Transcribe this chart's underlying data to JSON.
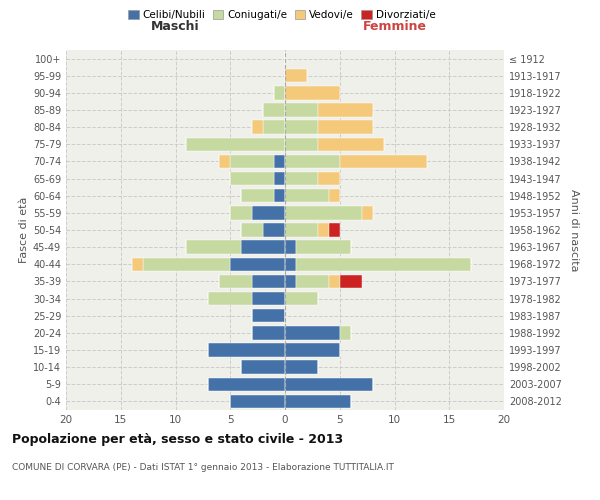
{
  "age_groups": [
    "0-4",
    "5-9",
    "10-14",
    "15-19",
    "20-24",
    "25-29",
    "30-34",
    "35-39",
    "40-44",
    "45-49",
    "50-54",
    "55-59",
    "60-64",
    "65-69",
    "70-74",
    "75-79",
    "80-84",
    "85-89",
    "90-94",
    "95-99",
    "100+"
  ],
  "birth_years": [
    "2008-2012",
    "2003-2007",
    "1998-2002",
    "1993-1997",
    "1988-1992",
    "1983-1987",
    "1978-1982",
    "1973-1977",
    "1968-1972",
    "1963-1967",
    "1958-1962",
    "1953-1957",
    "1948-1952",
    "1943-1947",
    "1938-1942",
    "1933-1937",
    "1928-1932",
    "1923-1927",
    "1918-1922",
    "1913-1917",
    "≤ 1912"
  ],
  "maschi": {
    "celibe": [
      5,
      7,
      4,
      7,
      3,
      3,
      3,
      3,
      5,
      4,
      2,
      3,
      1,
      1,
      1,
      0,
      0,
      0,
      0,
      0,
      0
    ],
    "coniugato": [
      0,
      0,
      0,
      0,
      0,
      0,
      4,
      3,
      8,
      5,
      2,
      2,
      3,
      4,
      4,
      9,
      2,
      2,
      1,
      0,
      0
    ],
    "vedovo": [
      0,
      0,
      0,
      0,
      0,
      0,
      0,
      0,
      1,
      0,
      0,
      0,
      0,
      0,
      1,
      0,
      1,
      0,
      0,
      0,
      0
    ],
    "divorziato": [
      0,
      0,
      0,
      0,
      0,
      0,
      0,
      0,
      0,
      0,
      0,
      0,
      0,
      0,
      0,
      0,
      0,
      0,
      0,
      0,
      0
    ]
  },
  "femmine": {
    "celibe": [
      6,
      8,
      3,
      5,
      5,
      0,
      0,
      1,
      1,
      1,
      0,
      0,
      0,
      0,
      0,
      0,
      0,
      0,
      0,
      0,
      0
    ],
    "coniugato": [
      0,
      0,
      0,
      0,
      1,
      0,
      3,
      3,
      16,
      5,
      3,
      7,
      4,
      3,
      5,
      3,
      3,
      3,
      0,
      0,
      0
    ],
    "vedovo": [
      0,
      0,
      0,
      0,
      0,
      0,
      0,
      1,
      0,
      0,
      1,
      1,
      1,
      2,
      8,
      6,
      5,
      5,
      5,
      2,
      0
    ],
    "divorziato": [
      0,
      0,
      0,
      0,
      0,
      0,
      0,
      2,
      0,
      0,
      1,
      0,
      0,
      0,
      0,
      0,
      0,
      0,
      0,
      0,
      0
    ]
  },
  "colors": {
    "celibe": "#4472a8",
    "coniugato": "#c5d9a0",
    "vedovo": "#f5c97a",
    "divorziato": "#cc2222"
  },
  "xlim": 20,
  "title": "Popolazione per età, sesso e stato civile - 2013",
  "subtitle": "COMUNE DI CORVARA (PE) - Dati ISTAT 1° gennaio 2013 - Elaborazione TUTTITALIA.IT",
  "ylabel_left": "Fasce di età",
  "ylabel_right": "Anni di nascita",
  "header_left": "Maschi",
  "header_right": "Femmine",
  "legend_labels": [
    "Celibi/Nubili",
    "Coniugati/e",
    "Vedovi/e",
    "Divorziati/e"
  ],
  "bg_color": "#ffffff",
  "plot_bg": "#f0f0eb"
}
